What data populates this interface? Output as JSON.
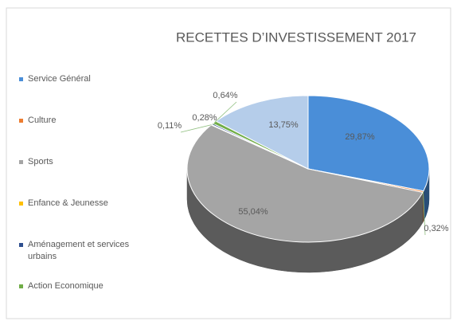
{
  "chart_data": {
    "type": "pie3d",
    "title": "RECETTES D’INVESTISSEMENT 2017",
    "categories": [
      "Service Général",
      "Culture",
      "Sports",
      "Enfance & Jeunesse",
      "Aménagement et services urbains",
      "Action Economique",
      null
    ],
    "values": [
      29.87,
      0.32,
      55.04,
      0.11,
      0.28,
      0.64,
      13.75
    ],
    "value_labels": [
      "29,87%",
      "0,32%",
      "55,04%",
      "0,11%",
      "0,28%",
      "0,64%",
      "13,75%"
    ],
    "colors": [
      "#4a8ed8",
      "#ed7d31",
      "#a5a5a5",
      "#ffc000",
      "#2f4f8f",
      "#70ad47",
      "#b5cdea"
    ],
    "legend": "left"
  }
}
